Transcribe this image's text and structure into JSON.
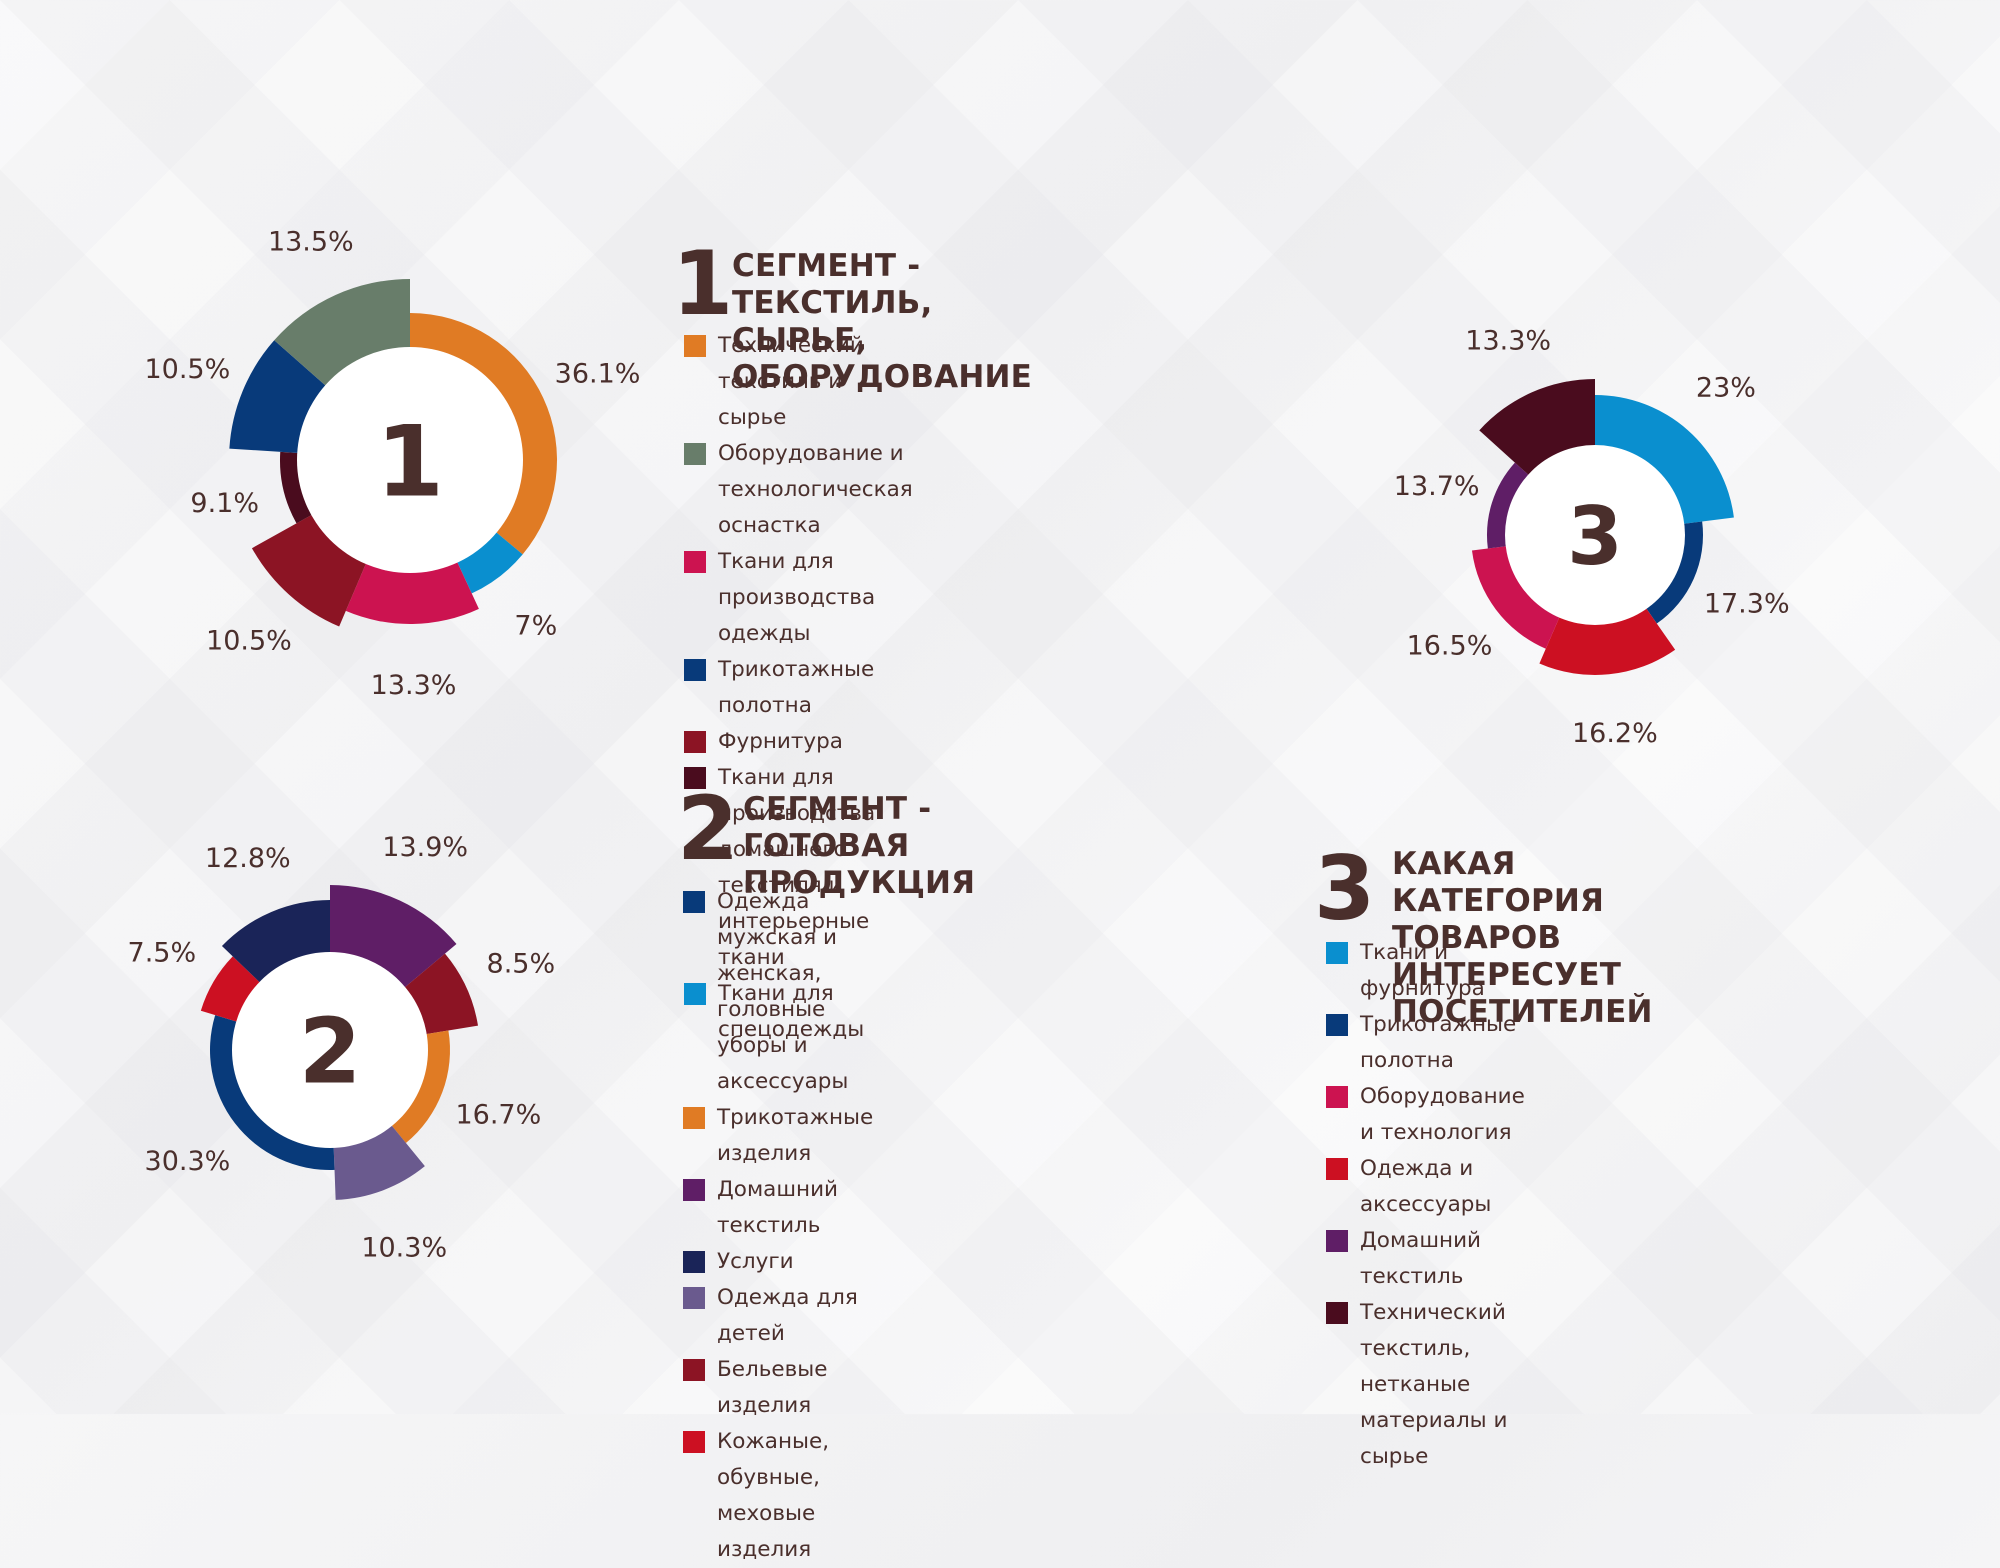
{
  "colors": {
    "text": "#4a2f2c",
    "orange": "#e07b24",
    "sage": "#687d6a",
    "crimson": "#cc1350",
    "navy": "#083a7a",
    "darkred": "#8c1424",
    "maroon": "#4a0c1e",
    "skyblue": "#0a8fcf",
    "purple": "#5f1e66",
    "midnight": "#1a2458",
    "lavender": "#6a5a8e",
    "red": "#cc1022"
  },
  "segment1": {
    "number": "1",
    "title": "СЕГМЕНТ - ТЕКСТИЛЬ, СЫРЬЕ,\nОБОРУДОВАНИЕ",
    "legend": [
      {
        "label": "Технический текстиль и сырье",
        "color": "#e07b24"
      },
      {
        "label": "Оборудование и технологическая оснастка",
        "color": "#687d6a"
      },
      {
        "label": "Ткани для производства одежды",
        "color": "#cc1350"
      },
      {
        "label": "Трикотажные полотна",
        "color": "#083a7a"
      },
      {
        "label": "Фурнитура",
        "color": "#8c1424"
      },
      {
        "label": "Ткани для производства домашнего\nтекстиля и интерьерные ткани",
        "color": "#4a0c1e"
      },
      {
        "label": "Ткани для спецодежды",
        "color": "#0a8fcf"
      }
    ]
  },
  "segment2": {
    "number": "2",
    "title": "СЕГМЕНТ - ГОТОВАЯ\nПРОДУКЦИЯ",
    "legend": [
      {
        "label": "Одежда мужская и женская,\nголовные уборы и аксессуары",
        "color": "#083a7a"
      },
      {
        "label": "Трикотажные изделия",
        "color": "#e07b24"
      },
      {
        "label": "Домашний текстиль",
        "color": "#5f1e66"
      },
      {
        "label": "Услуги",
        "color": "#1a2458"
      },
      {
        "label": "Одежда для детей",
        "color": "#6a5a8e"
      },
      {
        "label": "Бельевые изделия",
        "color": "#8c1424"
      },
      {
        "label": "Кожаные, обувные, меховые изделия",
        "color": "#cc1022"
      }
    ]
  },
  "segment3": {
    "number": "3",
    "title": "КАКАЯ КАТЕГОРИЯ ТОВАРОВ\nИНТЕРЕСУЕТ ПОСЕТИТЕЛЕЙ",
    "legend": [
      {
        "label": "Ткани и фурнитура",
        "color": "#0a8fcf"
      },
      {
        "label": "Трикотажные полотна",
        "color": "#083a7a"
      },
      {
        "label": "Оборудование и технология",
        "color": "#cc1350"
      },
      {
        "label": "Одежда и аксессуары",
        "color": "#cc1022"
      },
      {
        "label": "Домашний текстиль",
        "color": "#5f1e66"
      },
      {
        "label": "Технический текстиль, нетканые\n материалы и сырье",
        "color": "#4a0c1e"
      }
    ]
  },
  "chart_data": [
    {
      "type": "pie",
      "center_label": "1",
      "series": [
        {
          "name": "Технический текстиль и сырье",
          "value": 36.1,
          "label": "36.1%",
          "color": "#e07b24",
          "prominence": 2
        },
        {
          "name": "Ткани для спецодежды",
          "value": 7,
          "label": "7%",
          "color": "#0a8fcf",
          "prominence": 2
        },
        {
          "name": "Ткани для производства одежды",
          "value": 13.3,
          "label": "13.3%",
          "color": "#cc1350",
          "prominence": 3
        },
        {
          "name": "Фурнитура",
          "value": 10.5,
          "label": "10.5%",
          "color": "#8c1424",
          "prominence": 4
        },
        {
          "name": "Ткани для производства домашнего текстиля и интерьерные ткани",
          "value": 9.1,
          "label": "9.1%",
          "color": "#4a0c1e",
          "prominence": 1
        },
        {
          "name": "Трикотажные полотна",
          "value": 10.5,
          "label": "10.5%",
          "color": "#083a7a",
          "prominence": 4
        },
        {
          "name": "Оборудование и технологическая оснастка",
          "value": 13.5,
          "label": "13.5%",
          "color": "#687d6a",
          "prominence": 4
        }
      ]
    },
    {
      "type": "pie",
      "center_label": "2",
      "series": [
        {
          "name": "Домашний текстиль",
          "value": 13.9,
          "label": "13.9%",
          "color": "#5f1e66",
          "prominence": 4
        },
        {
          "name": "Бельевые изделия",
          "value": 8.5,
          "label": "8.5%",
          "color": "#8c1424",
          "prominence": 3
        },
        {
          "name": "Трикотажные изделия",
          "value": 16.7,
          "label": "16.7%",
          "color": "#e07b24",
          "prominence": 1
        },
        {
          "name": "Одежда для детей",
          "value": 10.3,
          "label": "10.3%",
          "color": "#6a5a8e",
          "prominence": 3
        },
        {
          "name": "Одежда мужская и женская, головные уборы и аксессуары",
          "value": 30.3,
          "label": "30.3%",
          "color": "#083a7a",
          "prominence": 1
        },
        {
          "name": "Кожаные, обувные, меховые изделия",
          "value": 7.5,
          "label": "7.5%",
          "color": "#cc1022",
          "prominence": 2
        },
        {
          "name": "Услуги",
          "value": 12.8,
          "label": "12.8%",
          "color": "#1a2458",
          "prominence": 3
        }
      ]
    },
    {
      "type": "pie",
      "center_label": "3",
      "series": [
        {
          "name": "Ткани и фурнитура",
          "value": 23,
          "label": "23%",
          "color": "#0a8fcf",
          "prominence": 3
        },
        {
          "name": "Трикотажные полотна",
          "value": 17.3,
          "label": "17.3%",
          "color": "#083a7a",
          "prominence": 1
        },
        {
          "name": "Одежда и аксессуары",
          "value": 16.2,
          "label": "16.2%",
          "color": "#cc1022",
          "prominence": 3
        },
        {
          "name": "Оборудование и технология",
          "value": 16.5,
          "label": "16.5%",
          "color": "#cc1350",
          "prominence": 2
        },
        {
          "name": "Домашний текстиль",
          "value": 13.7,
          "label": "13.7%",
          "color": "#5f1e66",
          "prominence": 1
        },
        {
          "name": "Технический текстиль, нетканые материалы и сырье",
          "value": 13.3,
          "label": "13.3%",
          "color": "#4a0c1e",
          "prominence": 4
        }
      ]
    }
  ]
}
